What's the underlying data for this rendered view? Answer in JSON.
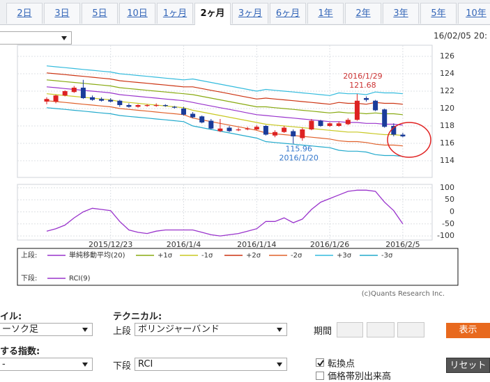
{
  "tabs": [
    "2日",
    "3日",
    "5日",
    "10日",
    "1ヶ月",
    "2ヶ月",
    "3ヶ月",
    "6ヶ月",
    "1年",
    "2年",
    "3年",
    "5年",
    "10年"
  ],
  "selected_tab": 5,
  "timestamp": "16/02/05 20:",
  "chart_data": [
    {
      "type": "candlestick",
      "open": [
        120.8,
        120.8,
        121.5,
        121.9,
        122.4,
        121.3,
        121.1,
        121.0,
        120.9,
        120.4,
        120.2,
        120.3,
        120.3,
        120.4,
        120.2,
        120.0,
        119.4,
        119.1,
        118.6,
        117.4,
        117.8,
        117.5,
        117.6,
        117.6,
        118.0,
        116.9,
        117.3,
        117.4,
        116.6,
        117.6,
        118.6,
        118.0,
        118.0,
        118.2,
        118.7,
        121.2,
        120.9,
        119.9,
        118.0,
        117.0
      ],
      "high": [
        121.3,
        121.6,
        122.1,
        122.6,
        123.3,
        121.5,
        121.3,
        121.2,
        121.0,
        120.6,
        120.5,
        120.5,
        120.6,
        120.5,
        120.3,
        120.2,
        119.6,
        119.2,
        118.8,
        118.8,
        118.0,
        117.8,
        117.9,
        118.1,
        118.1,
        117.5,
        118.0,
        117.6,
        117.8,
        118.8,
        118.7,
        118.4,
        118.5,
        118.9,
        121.68,
        121.4,
        121.0,
        120.0,
        118.3,
        117.2
      ],
      "low": [
        120.5,
        120.6,
        121.4,
        121.8,
        121.1,
        120.9,
        120.8,
        120.7,
        120.2,
        120.1,
        120.1,
        120.2,
        120.2,
        120.2,
        120.0,
        119.2,
        118.9,
        118.3,
        117.6,
        117.3,
        117.3,
        117.4,
        117.5,
        117.5,
        116.9,
        116.7,
        117.2,
        115.96,
        116.3,
        117.5,
        117.9,
        117.9,
        117.9,
        118.1,
        118.6,
        120.8,
        119.7,
        117.8,
        116.8,
        116.7
      ],
      "close": [
        121.1,
        121.5,
        122.0,
        122.4,
        121.2,
        121.0,
        120.9,
        120.8,
        120.4,
        120.2,
        120.4,
        120.4,
        120.4,
        120.3,
        120.1,
        119.3,
        119.0,
        118.4,
        117.7,
        117.7,
        117.4,
        117.6,
        117.7,
        117.9,
        117.0,
        117.3,
        117.8,
        116.8,
        117.6,
        118.6,
        118.0,
        118.3,
        118.3,
        118.7,
        120.9,
        121.0,
        119.8,
        117.9,
        117.0,
        116.8
      ],
      "up_color": "#dd2222",
      "down_color": "#1a3c9a",
      "series": [
        {
          "name": "単純移動平均(20)",
          "color": "#9933cc",
          "values": [
            122.5,
            122.4,
            122.3,
            122.2,
            122.1,
            122.0,
            121.9,
            121.8,
            121.6,
            121.5,
            121.4,
            121.3,
            121.2,
            121.1,
            121.0,
            120.9,
            120.7,
            120.5,
            120.3,
            120.1,
            119.9,
            119.7,
            119.5,
            119.3,
            119.2,
            119.1,
            119.0,
            118.9,
            118.8,
            118.7,
            118.6,
            118.5,
            118.5,
            118.4,
            118.4,
            118.3,
            118.3,
            118.2,
            118.2,
            118.1
          ]
        },
        {
          "name": "+1σ",
          "color": "#88aa11",
          "values": [
            123.3,
            123.2,
            123.1,
            123.0,
            122.9,
            122.8,
            122.7,
            122.6,
            122.4,
            122.3,
            122.2,
            122.1,
            122.0,
            121.9,
            121.8,
            121.7,
            121.6,
            121.4,
            121.2,
            121.0,
            120.8,
            120.6,
            120.4,
            120.2,
            120.2,
            120.1,
            120.0,
            119.9,
            119.8,
            119.7,
            119.6,
            119.5,
            119.6,
            119.5,
            119.5,
            119.4,
            119.5,
            119.4,
            119.4,
            119.3
          ]
        },
        {
          "name": "-1σ",
          "color": "#c8c822",
          "values": [
            121.7,
            121.6,
            121.5,
            121.4,
            121.3,
            121.2,
            121.1,
            121.0,
            120.8,
            120.7,
            120.6,
            120.5,
            120.4,
            120.3,
            120.2,
            120.1,
            119.8,
            119.6,
            119.4,
            119.2,
            119.0,
            118.8,
            118.6,
            118.4,
            118.2,
            118.1,
            118.0,
            117.9,
            117.8,
            117.7,
            117.6,
            117.5,
            117.4,
            117.3,
            117.3,
            117.2,
            117.1,
            117.0,
            117.0,
            116.9
          ]
        },
        {
          "name": "+2σ",
          "color": "#cc3311",
          "values": [
            124.1,
            124.0,
            123.9,
            123.8,
            123.7,
            123.6,
            123.5,
            123.4,
            123.2,
            123.1,
            123.0,
            122.9,
            122.8,
            122.7,
            122.6,
            122.5,
            122.5,
            122.3,
            122.1,
            121.9,
            121.7,
            121.5,
            121.3,
            121.1,
            121.2,
            121.1,
            121.0,
            120.9,
            120.8,
            120.7,
            120.6,
            120.5,
            120.7,
            120.6,
            120.6,
            120.5,
            120.7,
            120.6,
            120.6,
            120.5
          ]
        },
        {
          "name": "-2σ",
          "color": "#e0602a",
          "values": [
            120.9,
            120.8,
            120.7,
            120.6,
            120.5,
            120.4,
            120.3,
            120.2,
            120.0,
            119.9,
            119.8,
            119.7,
            119.6,
            119.5,
            119.4,
            119.3,
            118.9,
            118.7,
            118.5,
            118.3,
            118.1,
            117.9,
            117.7,
            117.5,
            117.2,
            117.1,
            117.0,
            116.9,
            116.8,
            116.7,
            116.6,
            116.5,
            116.3,
            116.2,
            116.2,
            116.1,
            115.9,
            115.8,
            115.8,
            115.7
          ]
        },
        {
          "name": "+3σ",
          "color": "#33bbdd",
          "values": [
            124.9,
            124.8,
            124.7,
            124.6,
            124.5,
            124.4,
            124.3,
            124.2,
            124.0,
            123.9,
            123.8,
            123.7,
            123.6,
            123.5,
            123.4,
            123.3,
            123.4,
            123.2,
            123.0,
            122.8,
            122.6,
            122.4,
            122.2,
            122.0,
            122.2,
            122.1,
            122.0,
            121.9,
            121.8,
            121.7,
            121.6,
            121.5,
            121.8,
            121.7,
            121.7,
            121.6,
            121.9,
            121.8,
            121.8,
            121.7
          ]
        },
        {
          "name": "-3σ",
          "color": "#22aacc",
          "values": [
            120.1,
            120.0,
            119.9,
            119.8,
            119.7,
            119.6,
            119.5,
            119.4,
            119.2,
            119.1,
            119.0,
            118.9,
            118.8,
            118.7,
            118.6,
            118.5,
            118.0,
            117.8,
            117.6,
            117.4,
            117.2,
            117.0,
            116.8,
            116.6,
            116.2,
            116.1,
            116.0,
            115.9,
            115.8,
            115.7,
            115.6,
            115.5,
            115.2,
            115.1,
            115.1,
            115.0,
            114.7,
            114.6,
            114.6,
            114.5
          ]
        }
      ],
      "ylim": [
        112.08,
        127.28
      ],
      "yticks": [
        114,
        116,
        118,
        120,
        122,
        124,
        126
      ],
      "grid": true,
      "annotations": [
        {
          "text": "2016/1/29",
          "value": 121.68,
          "color": "#cc3333"
        },
        {
          "text": "2016/1/20",
          "value": 115.96,
          "color": "#3377cc"
        }
      ]
    },
    {
      "type": "line",
      "categories": [
        null,
        null,
        null,
        null,
        null,
        null,
        null,
        "2015/12/23",
        null,
        null,
        null,
        null,
        null,
        null,
        null,
        "2016/1/4",
        null,
        null,
        null,
        null,
        null,
        null,
        null,
        "2016/1/14",
        null,
        null,
        null,
        null,
        null,
        null,
        null,
        "2016/1/26",
        null,
        null,
        null,
        null,
        null,
        null,
        null,
        "2016/2/5"
      ],
      "series": [
        {
          "name": "RCI(9)",
          "color": "#9933cc",
          "values": [
            -80,
            -70,
            -55,
            -25,
            0,
            15,
            10,
            5,
            -40,
            -75,
            -85,
            -90,
            -80,
            -75,
            -75,
            -75,
            -75,
            -85,
            -95,
            -100,
            -95,
            -90,
            -80,
            -70,
            -40,
            -40,
            -25,
            -45,
            -30,
            10,
            40,
            55,
            70,
            85,
            90,
            90,
            85,
            40,
            5,
            -50
          ]
        }
      ],
      "ylim": [
        -117,
        114
      ],
      "yticks": [
        100,
        50,
        0,
        -50,
        -100
      ],
      "grid": true
    }
  ],
  "legend": {
    "upper": "上段:",
    "lower": "下段:"
  },
  "copyright": "(c)Quants Research Inc.",
  "controls": {
    "style_label": "イル:",
    "style_select": "ーソク足",
    "technical_label": "テクニカル:",
    "upper_label": "上段",
    "upper_select": "ボリンジャーバンド",
    "period_label": "期間",
    "show_button": "表示",
    "index_label": "する指数:",
    "index_select": "-",
    "lower_label": "下段",
    "lower_select": "RCI",
    "turning_point": "転換点",
    "reset_button": "リセット",
    "volume_label": "価格帯別出来高"
  }
}
